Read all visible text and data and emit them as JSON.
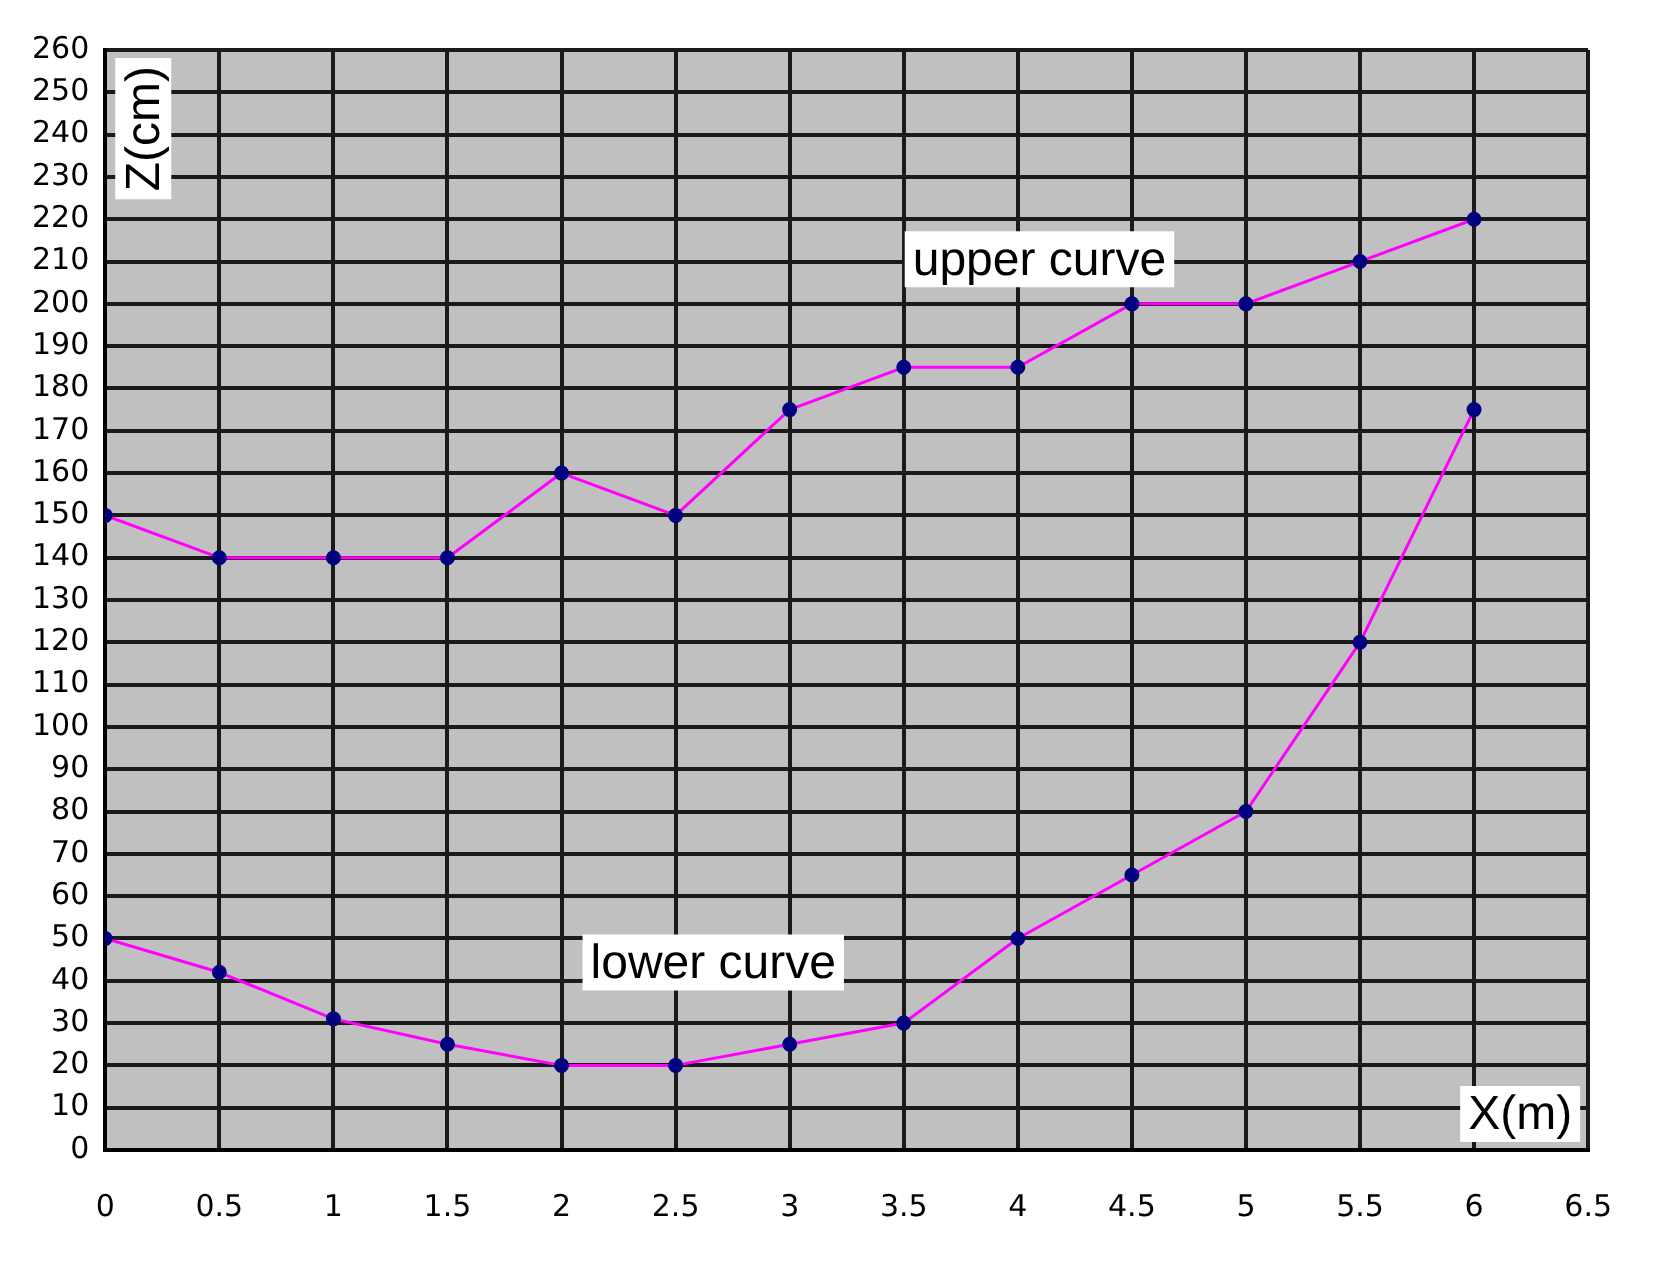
{
  "chart_data": {
    "type": "line",
    "xlabel": "X(m)",
    "ylabel": "Z(cm)",
    "x": [
      0,
      0.5,
      1,
      1.5,
      2,
      2.5,
      3,
      3.5,
      4,
      4.5,
      5,
      5.5,
      6
    ],
    "series": [
      {
        "name": "upper curve",
        "color": "#ff00ff",
        "values": [
          150,
          140,
          140,
          140,
          160,
          150,
          175,
          185,
          185,
          200,
          200,
          210,
          220
        ]
      },
      {
        "name": "lower curve",
        "color": "#ff00ff",
        "values": [
          50,
          42,
          31,
          25,
          20,
          20,
          25,
          30,
          50,
          65,
          80,
          120,
          175
        ]
      }
    ],
    "xlim": [
      0,
      6.5
    ],
    "xticks": [
      0,
      0.5,
      1,
      1.5,
      2,
      2.5,
      3,
      3.5,
      4,
      4.5,
      5,
      5.5,
      6,
      6.5
    ],
    "ylim": [
      0,
      260
    ],
    "yticks": [
      0,
      10,
      20,
      30,
      40,
      50,
      60,
      70,
      80,
      90,
      100,
      110,
      120,
      130,
      140,
      150,
      160,
      170,
      180,
      190,
      200,
      210,
      220,
      230,
      240,
      250,
      260
    ],
    "grid": true,
    "legend": false,
    "marker": "circle",
    "line_style": "solid"
  }
}
